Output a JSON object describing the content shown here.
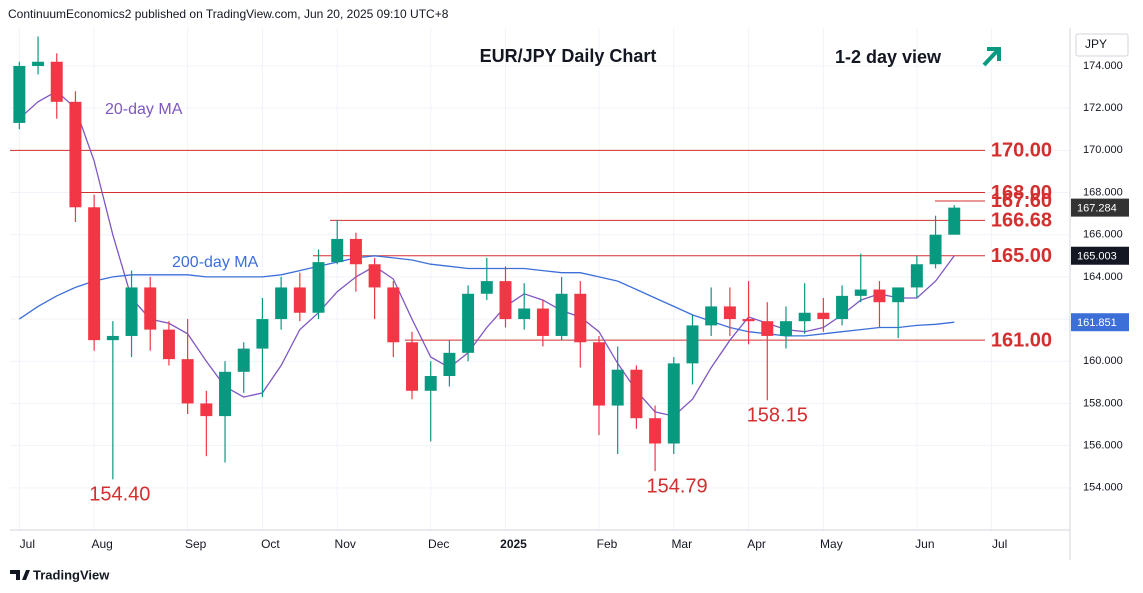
{
  "chart_data": {
    "type": "candlestick",
    "header": "ContinuumEconomics2 published on TradingView.com, Jun 20, 2025 09:10 UTC+8",
    "title": "EUR/JPY Daily Chart",
    "subtitle": "1-2 day view",
    "currency": "JPY",
    "footer": "TradingView",
    "categories": [
      "Jul",
      null,
      null,
      null,
      "Aug",
      null,
      null,
      null,
      null,
      "Sep",
      null,
      null,
      null,
      "Oct",
      null,
      null,
      null,
      "Nov",
      null,
      null,
      null,
      null,
      "Dec",
      null,
      null,
      null,
      "2025",
      null,
      null,
      null,
      null,
      "Feb",
      null,
      null,
      null,
      "Mar",
      null,
      null,
      null,
      "Apr",
      null,
      null,
      null,
      "May",
      null,
      null,
      null,
      null,
      "Jun",
      null,
      null,
      null,
      "Jul"
    ],
    "ohlc": {
      "open": [
        171.3,
        174.0,
        174.2,
        172.3,
        167.3,
        161.0,
        161.2,
        163.5,
        161.5,
        160.1,
        158.0,
        157.4,
        159.5,
        160.6,
        162.0,
        163.5,
        162.3,
        164.7,
        165.8,
        164.6,
        163.5,
        160.9,
        158.6,
        159.3,
        160.4,
        163.2,
        163.8,
        162.0,
        162.5,
        161.2,
        163.2,
        160.9,
        157.9,
        159.6,
        157.3,
        156.1,
        159.9,
        161.7,
        162.6,
        162.0,
        161.9,
        161.2,
        161.9,
        162.3,
        162.0,
        163.1,
        163.4,
        162.8,
        163.5,
        164.6,
        166.0,
        null,
        null
      ],
      "high": [
        174.2,
        175.4,
        174.6,
        172.8,
        167.9,
        161.9,
        164.3,
        164.0,
        161.9,
        162.0,
        158.6,
        160.0,
        160.9,
        163.0,
        164.0,
        164.2,
        165.3,
        166.7,
        166.1,
        164.9,
        163.8,
        161.4,
        160.0,
        161.0,
        163.6,
        164.9,
        164.5,
        163.7,
        162.9,
        164.0,
        163.8,
        161.2,
        160.7,
        159.8,
        157.9,
        160.2,
        162.2,
        163.5,
        163.5,
        163.8,
        162.8,
        162.6,
        163.7,
        163.0,
        163.6,
        165.1,
        163.8,
        163.5,
        165.0,
        166.9,
        167.4,
        null,
        null
      ],
      "low": [
        171.0,
        173.6,
        171.5,
        166.6,
        160.5,
        154.4,
        160.2,
        160.5,
        159.8,
        157.5,
        155.5,
        155.2,
        158.5,
        158.3,
        161.5,
        161.9,
        162.0,
        164.6,
        163.3,
        162.0,
        160.2,
        158.2,
        156.2,
        158.8,
        160.0,
        162.9,
        161.6,
        161.5,
        160.7,
        161.0,
        159.7,
        156.5,
        155.6,
        156.8,
        154.79,
        155.6,
        158.9,
        161.2,
        161.2,
        160.8,
        158.15,
        160.6,
        161.3,
        161.4,
        161.7,
        162.8,
        161.6,
        161.1,
        163.0,
        164.4,
        166.0,
        null,
        null
      ],
      "close": [
        174.0,
        174.2,
        172.3,
        167.3,
        161.0,
        161.2,
        163.5,
        161.5,
        160.1,
        158.0,
        157.4,
        159.5,
        160.6,
        162.0,
        163.5,
        162.3,
        164.7,
        165.8,
        164.6,
        163.5,
        160.9,
        158.6,
        159.3,
        160.4,
        163.2,
        163.8,
        162.0,
        162.5,
        161.2,
        163.2,
        160.9,
        157.9,
        159.6,
        157.3,
        156.1,
        159.9,
        161.7,
        162.6,
        162.0,
        161.9,
        161.2,
        161.9,
        162.3,
        162.0,
        163.1,
        163.4,
        162.8,
        163.5,
        164.6,
        166.0,
        167.284,
        null,
        null
      ]
    },
    "up_color": "#089981",
    "down_color": "#f23645",
    "ma_series": [
      {
        "name": "20-day MA",
        "color": "#7e57c2",
        "values": [
          171.5,
          172.3,
          172.8,
          172.0,
          169.5,
          166.0,
          163.0,
          162.0,
          161.8,
          161.3,
          160.0,
          158.8,
          158.3,
          158.5,
          159.8,
          161.5,
          162.3,
          163.3,
          164.0,
          164.5,
          163.9,
          162.0,
          160.2,
          159.7,
          160.4,
          161.6,
          162.6,
          163.2,
          162.9,
          162.4,
          162.1,
          161.4,
          159.9,
          158.6,
          157.6,
          157.4,
          158.2,
          159.7,
          161.0,
          162.1,
          161.8,
          161.5,
          161.4,
          161.6,
          162.2,
          162.9,
          163.2,
          163.0,
          163.0,
          163.8,
          165.003,
          null,
          null
        ]
      },
      {
        "name": "200-day MA",
        "color": "#3d6fd9",
        "values": [
          162.0,
          162.6,
          163.1,
          163.5,
          163.8,
          164.0,
          164.1,
          164.1,
          164.1,
          164.1,
          164.0,
          164.0,
          164.0,
          164.0,
          164.1,
          164.3,
          164.5,
          164.7,
          164.9,
          165.0,
          164.9,
          164.8,
          164.6,
          164.5,
          164.4,
          164.4,
          164.4,
          164.4,
          164.3,
          164.2,
          164.2,
          164.0,
          163.8,
          163.4,
          163.0,
          162.6,
          162.2,
          161.9,
          161.6,
          161.4,
          161.3,
          161.2,
          161.2,
          161.3,
          161.4,
          161.5,
          161.6,
          161.6,
          161.7,
          161.75,
          161.851,
          null,
          null
        ]
      }
    ],
    "levels": [
      {
        "value": 170,
        "label": "170.00"
      },
      {
        "value": 168,
        "label": "168.00"
      },
      {
        "value": 167.6,
        "label": "167.60"
      },
      166.68,
      {
        "value": 165,
        "label": "165.00"
      },
      {
        "value": 161,
        "label": "161.00"
      }
    ],
    "level_color": "#d32f2f",
    "annotations": [
      {
        "value": 154.4,
        "label": "154.40"
      },
      154.79,
      158.15
    ],
    "ylim": [
      152.0,
      175.8
    ],
    "yticks": [
      {
        "value": 154,
        "label": "154.000"
      },
      {
        "value": 156,
        "label": "156.000"
      },
      {
        "value": 158,
        "label": "158.000"
      },
      {
        "value": 160,
        "label": "160.000"
      },
      {
        "value": 162,
        "label": "162.000"
      },
      {
        "value": 164,
        "label": "164.000"
      },
      {
        "value": 166,
        "label": "166.000"
      },
      {
        "value": 168,
        "label": "168.000"
      },
      {
        "value": 170,
        "label": "170.000"
      },
      {
        "value": 172,
        "label": "172.000"
      },
      {
        "value": 174,
        "label": "174.000"
      }
    ],
    "grid": true
  }
}
